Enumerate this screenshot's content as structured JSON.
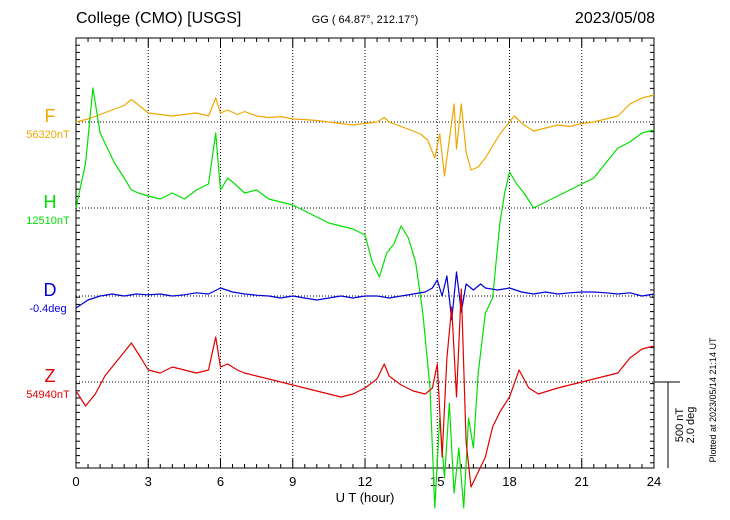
{
  "header": {
    "station": "College (CMO)  [USGS]",
    "coords": "GG ( 64.87°, 212.17°)",
    "date": "2023/05/08"
  },
  "footer_note": "Plotted at 2023/05/14 21:14 UT",
  "scale_labels": [
    "500 nT",
    "2.0 deg"
  ],
  "colors": {
    "F": "#f0a800",
    "H": "#00e000",
    "D": "#0000d8",
    "Z": "#e00000"
  },
  "chart_data": {
    "type": "line",
    "xlabel": "U T (hour)",
    "xlim": [
      0,
      24
    ],
    "xticks": [
      0,
      3,
      6,
      9,
      12,
      15,
      18,
      21,
      24
    ],
    "grid": "dotted",
    "series": [
      {
        "name": "F",
        "baseline_label": "56320nT",
        "color": "#f0a800",
        "x": [
          0,
          0.5,
          1,
          1.5,
          2,
          2.3,
          2.7,
          3,
          3.5,
          4,
          4.5,
          5,
          5.5,
          5.8,
          6,
          6.3,
          6.7,
          7,
          7.5,
          8,
          8.5,
          9,
          9.5,
          10,
          10.5,
          11,
          11.5,
          12,
          12.5,
          12.8,
          13,
          13.5,
          14,
          14.3,
          14.6,
          14.9,
          15.1,
          15.3,
          15.5,
          15.7,
          15.8,
          16,
          16.2,
          16.4,
          16.7,
          17,
          17.3,
          17.6,
          17.9,
          18.2,
          18.6,
          19,
          19.5,
          20,
          20.5,
          21,
          21.5,
          22,
          22.5,
          23,
          23.5,
          24
        ],
        "y": [
          0,
          10,
          25,
          40,
          55,
          75,
          50,
          30,
          25,
          20,
          25,
          30,
          20,
          80,
          30,
          40,
          25,
          35,
          20,
          15,
          18,
          10,
          8,
          5,
          0,
          -5,
          -10,
          -5,
          0,
          15,
          0,
          -15,
          -30,
          -40,
          -60,
          -120,
          -40,
          -180,
          -60,
          60,
          -90,
          60,
          -100,
          -160,
          -150,
          -120,
          -80,
          -40,
          -10,
          20,
          -10,
          -30,
          -20,
          -10,
          -15,
          -5,
          0,
          10,
          20,
          60,
          80,
          90
        ]
      },
      {
        "name": "H",
        "baseline_label": "12510nT",
        "color": "#00e000",
        "x": [
          0,
          0.4,
          0.7,
          1,
          1.3,
          1.6,
          2,
          2.3,
          2.6,
          3,
          3.5,
          4,
          4.5,
          5,
          5.5,
          5.8,
          6,
          6.3,
          6.6,
          7,
          7.5,
          8,
          8.5,
          9,
          9.5,
          10,
          10.5,
          11,
          11.5,
          12,
          12.3,
          12.6,
          12.9,
          13.2,
          13.5,
          13.8,
          14.1,
          14.4,
          14.7,
          14.9,
          15.1,
          15.3,
          15.5,
          15.7,
          15.9,
          16.1,
          16.3,
          16.5,
          16.7,
          17,
          17.3,
          17.6,
          17.8,
          18,
          18.3,
          18.6,
          19,
          19.5,
          20,
          20.5,
          21,
          21.5,
          22,
          22.5,
          23,
          23.5,
          24
        ],
        "y": [
          0,
          150,
          400,
          250,
          200,
          150,
          100,
          60,
          50,
          40,
          30,
          50,
          30,
          60,
          80,
          250,
          60,
          100,
          80,
          50,
          60,
          30,
          20,
          10,
          -10,
          -30,
          -50,
          -60,
          -70,
          -90,
          -180,
          -230,
          -150,
          -120,
          -60,
          -100,
          -180,
          -350,
          -600,
          -1000,
          -700,
          -900,
          -650,
          -950,
          -800,
          -1000,
          -700,
          -800,
          -550,
          -350,
          -300,
          -50,
          50,
          120,
          80,
          50,
          0,
          20,
          40,
          60,
          80,
          100,
          150,
          200,
          220,
          250,
          260
        ]
      },
      {
        "name": "D",
        "baseline_label": "-0.4deg",
        "color": "#0000d8",
        "x": [
          0,
          0.5,
          1,
          1.5,
          2,
          2.5,
          3,
          3.5,
          4,
          4.5,
          5,
          5.5,
          6,
          6.5,
          7,
          7.5,
          8,
          8.5,
          9,
          9.5,
          10,
          10.5,
          11,
          11.5,
          12,
          12.5,
          13,
          13.5,
          14,
          14.5,
          14.8,
          15,
          15.2,
          15.4,
          15.6,
          15.8,
          16,
          16.2,
          16.5,
          16.8,
          17,
          17.5,
          18,
          18.5,
          19,
          19.5,
          20,
          20.5,
          21,
          21.5,
          22,
          22.5,
          23,
          23.5,
          24
        ],
        "y": [
          -0.3,
          -0.1,
          0,
          0.05,
          0,
          0.05,
          0.03,
          0.05,
          0,
          0.03,
          0.08,
          0.05,
          0.2,
          0.1,
          0.05,
          0.02,
          0,
          -0.05,
          0,
          -0.05,
          -0.1,
          -0.05,
          0,
          -0.05,
          0,
          0,
          -0.05,
          0,
          0.05,
          0.1,
          0.2,
          0.4,
          0,
          0.5,
          -0.6,
          0.6,
          -0.4,
          0.3,
          0.15,
          0.3,
          0.2,
          0.15,
          0.2,
          0.1,
          0.05,
          0.1,
          0.05,
          0.08,
          0.1,
          0.1,
          0.08,
          0.05,
          0.08,
          0,
          0.05
        ]
      },
      {
        "name": "Z",
        "baseline_label": "54940nT",
        "color": "#e00000",
        "x": [
          0,
          0.4,
          0.8,
          1.2,
          1.6,
          2,
          2.3,
          2.7,
          3,
          3.5,
          4,
          4.5,
          5,
          5.5,
          5.8,
          6,
          6.3,
          6.7,
          7,
          7.5,
          8,
          8.5,
          9,
          9.5,
          10,
          10.5,
          11,
          11.5,
          12,
          12.5,
          12.8,
          13,
          13.5,
          14,
          14.5,
          14.8,
          15,
          15.2,
          15.4,
          15.6,
          15.8,
          16,
          16.2,
          16.4,
          16.7,
          17,
          17.3,
          17.6,
          18,
          18.4,
          18.8,
          19.2,
          19.6,
          20,
          20.5,
          21,
          21.5,
          22,
          22.5,
          23,
          23.5,
          24
        ],
        "y": [
          -30,
          -80,
          -40,
          20,
          60,
          100,
          130,
          80,
          40,
          30,
          50,
          40,
          30,
          40,
          150,
          50,
          60,
          40,
          30,
          20,
          10,
          0,
          -10,
          -20,
          -30,
          -40,
          -50,
          -40,
          -20,
          10,
          60,
          20,
          -10,
          -30,
          -40,
          -20,
          60,
          -250,
          80,
          250,
          -50,
          310,
          -200,
          -350,
          -300,
          -250,
          -150,
          -100,
          -50,
          40,
          -20,
          -40,
          -30,
          -20,
          -10,
          0,
          10,
          20,
          30,
          80,
          110,
          120
        ]
      }
    ]
  }
}
